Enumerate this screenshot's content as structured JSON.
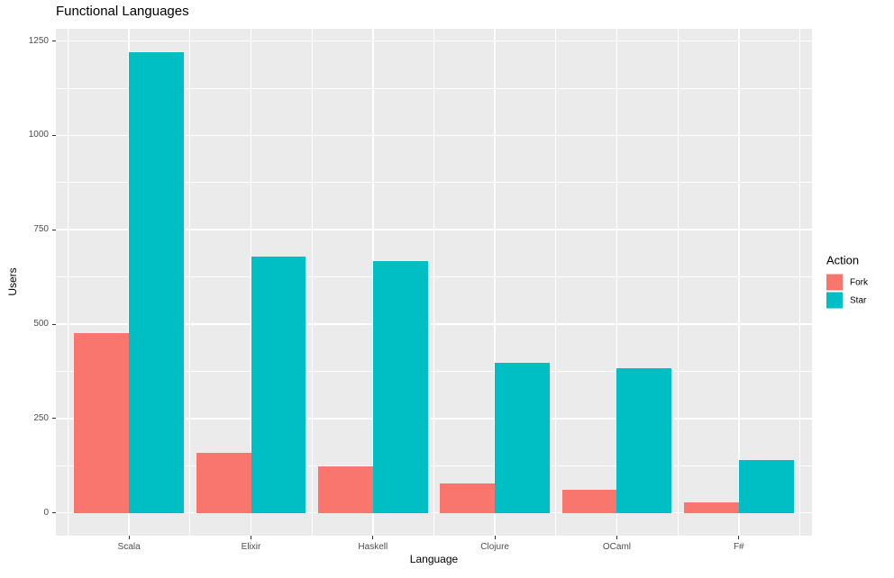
{
  "title": "Functional Languages",
  "chart_data": {
    "type": "bar",
    "grouped": true,
    "title": "Functional Languages",
    "xlabel": "Language",
    "ylabel": "Users",
    "categories": [
      "Scala",
      "Elixir",
      "Haskell",
      "Clojure",
      "OCaml",
      "F#"
    ],
    "series": [
      {
        "name": "Fork",
        "color": "#F8766D",
        "values": [
          475,
          160,
          122,
          78,
          62,
          28
        ]
      },
      {
        "name": "Star",
        "color": "#00BFC4",
        "values": [
          1220,
          678,
          667,
          397,
          382,
          140
        ]
      }
    ],
    "yticks": [
      0,
      250,
      500,
      750,
      1000,
      1250
    ],
    "y_minor_ticks": [
      125,
      375,
      625,
      875,
      1125
    ],
    "ylim": [
      0,
      1286
    ],
    "grid": true,
    "legend_title": "Action",
    "legend_position": "right",
    "panel_bg": "#EBEBEB",
    "grid_color": "#FFFFFF",
    "tick_text_color": "#4D4D4D"
  }
}
